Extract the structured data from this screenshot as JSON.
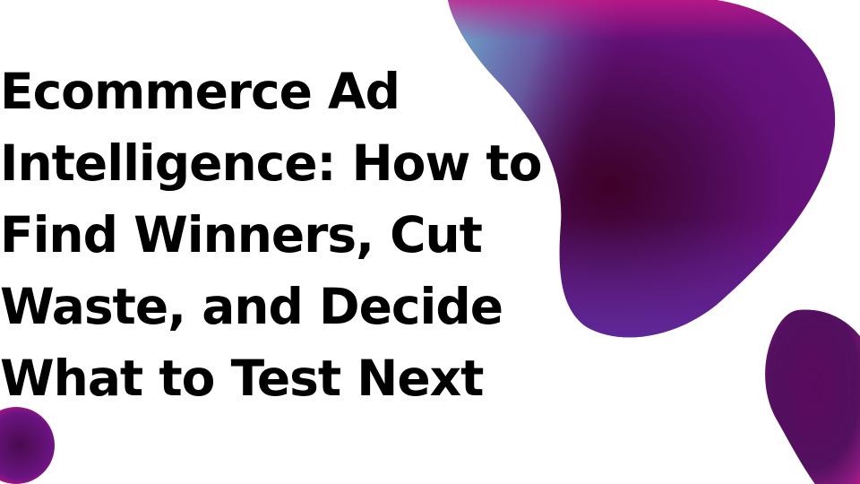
{
  "title": "Ecommerce Ad Intelligence: How to Find Winners, Cut Waste, and Decide What to Test Next",
  "colors": {
    "text": "#000000",
    "background": "#ffffff",
    "blob_cyan": "#6cbad3",
    "blob_magenta": "#c8188a",
    "blob_purple": "#5a1a7a",
    "blob_dark": "#3e0028",
    "blob_violet": "#5e2a9a"
  }
}
